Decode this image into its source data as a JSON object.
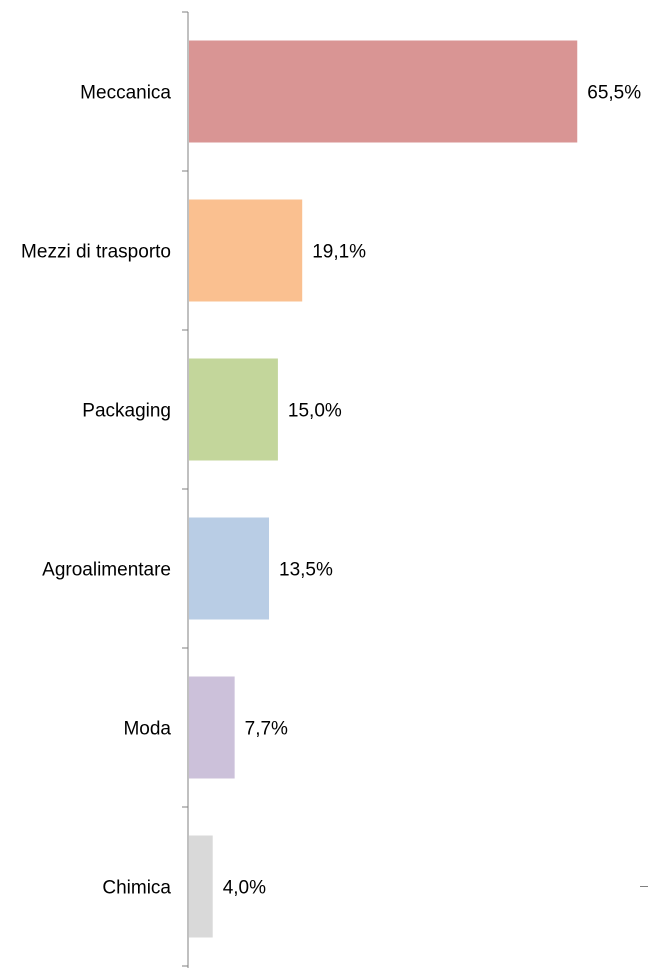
{
  "chart_data": {
    "type": "bar",
    "orientation": "horizontal",
    "categories": [
      "Meccanica",
      "Mezzi di trasporto",
      "Packaging",
      "Agroalimentare",
      "Moda",
      "Chimica"
    ],
    "values": [
      65.5,
      19.1,
      15.0,
      13.5,
      7.7,
      4.0
    ],
    "value_labels": [
      "65,5%",
      "19,1%",
      "15,0%",
      "13,5%",
      "7,7%",
      "4,0%"
    ],
    "colors": [
      "#D99594",
      "#FAC090",
      "#C3D69B",
      "#B9CDE5",
      "#CCC1DA",
      "#D9D9D9"
    ],
    "xlim": [
      0,
      70
    ],
    "grid": false,
    "legend": "none"
  }
}
